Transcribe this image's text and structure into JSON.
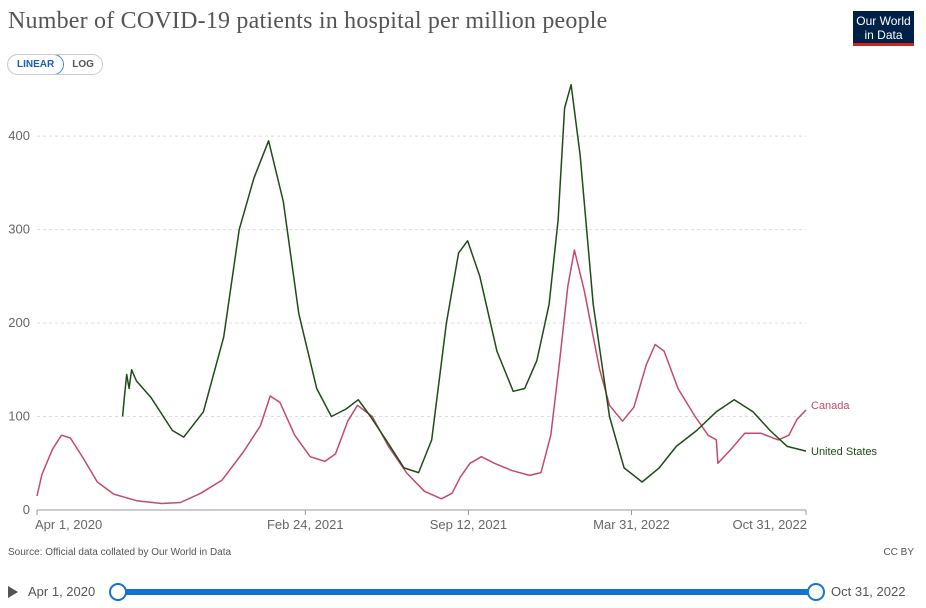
{
  "header": {
    "title": "Number of COVID-19 patients in hospital per million people",
    "logo_line1": "Our World",
    "logo_line2": "in Data"
  },
  "scale_toggle": {
    "linear": "LINEAR",
    "log": "LOG"
  },
  "footer": {
    "source": "Source: Official data collated by Our World in Data",
    "license": "CC BY"
  },
  "timeline": {
    "start": "Apr 1, 2020",
    "end": "Oct 31, 2022"
  },
  "colors": {
    "canada": "#c44a6c",
    "united_states": "#1d4d15",
    "accent": "#1273d1"
  },
  "chart_data": {
    "type": "line",
    "title": "Number of COVID-19 patients in hospital per million people",
    "y_ticks": [
      0,
      100,
      200,
      300,
      400
    ],
    "ylim": [
      0,
      460
    ],
    "x_ticks": [
      "Apr 1, 2020",
      "Feb 24, 2021",
      "Sep 12, 2021",
      "Mar 31, 2022",
      "Oct 31, 2022"
    ],
    "xlim": [
      "2020-04-01",
      "2022-10-31"
    ],
    "grid": "horizontal",
    "legend": "end-of-line labels",
    "series": [
      {
        "name": "Canada",
        "points": [
          [
            "2020-04-01",
            15
          ],
          [
            "2020-04-07",
            38
          ],
          [
            "2020-04-20",
            65
          ],
          [
            "2020-05-01",
            80
          ],
          [
            "2020-05-12",
            77
          ],
          [
            "2020-05-28",
            55
          ],
          [
            "2020-06-14",
            30
          ],
          [
            "2020-07-04",
            17
          ],
          [
            "2020-08-01",
            10
          ],
          [
            "2020-09-01",
            7
          ],
          [
            "2020-09-24",
            8
          ],
          [
            "2020-10-19",
            18
          ],
          [
            "2020-11-14",
            32
          ],
          [
            "2020-12-10",
            62
          ],
          [
            "2020-12-31",
            90
          ],
          [
            "2021-01-12",
            122
          ],
          [
            "2021-01-24",
            115
          ],
          [
            "2021-02-11",
            80
          ],
          [
            "2021-03-02",
            57
          ],
          [
            "2021-03-20",
            52
          ],
          [
            "2021-04-02",
            60
          ],
          [
            "2021-04-17",
            95
          ],
          [
            "2021-04-29",
            112
          ],
          [
            "2021-05-17",
            100
          ],
          [
            "2021-06-06",
            68
          ],
          [
            "2021-06-28",
            40
          ],
          [
            "2021-07-20",
            20
          ],
          [
            "2021-08-10",
            12
          ],
          [
            "2021-08-23",
            18
          ],
          [
            "2021-09-02",
            35
          ],
          [
            "2021-09-14",
            50
          ],
          [
            "2021-09-28",
            57
          ],
          [
            "2021-10-14",
            50
          ],
          [
            "2021-11-05",
            42
          ],
          [
            "2021-11-26",
            37
          ],
          [
            "2021-12-10",
            40
          ],
          [
            "2021-12-22",
            80
          ],
          [
            "2022-01-02",
            160
          ],
          [
            "2022-01-12",
            240
          ],
          [
            "2022-01-20",
            278
          ],
          [
            "2022-02-01",
            235
          ],
          [
            "2022-02-20",
            150
          ],
          [
            "2022-03-04",
            112
          ],
          [
            "2022-03-20",
            95
          ],
          [
            "2022-04-03",
            110
          ],
          [
            "2022-04-18",
            155
          ],
          [
            "2022-04-29",
            177
          ],
          [
            "2022-05-10",
            170
          ],
          [
            "2022-05-27",
            130
          ],
          [
            "2022-06-17",
            100
          ],
          [
            "2022-07-03",
            80
          ],
          [
            "2022-07-13",
            75
          ],
          [
            "2022-07-15",
            50
          ],
          [
            "2022-07-31",
            65
          ],
          [
            "2022-08-17",
            82
          ],
          [
            "2022-09-06",
            82
          ],
          [
            "2022-09-27",
            75
          ],
          [
            "2022-10-10",
            80
          ],
          [
            "2022-10-20",
            97
          ],
          [
            "2022-10-31",
            107
          ]
        ]
      },
      {
        "name": "United States",
        "points": [
          [
            "2020-07-15",
            100
          ],
          [
            "2020-07-17",
            120
          ],
          [
            "2020-07-20",
            145
          ],
          [
            "2020-07-23",
            130
          ],
          [
            "2020-07-26",
            150
          ],
          [
            "2020-08-01",
            138
          ],
          [
            "2020-08-19",
            120
          ],
          [
            "2020-09-14",
            85
          ],
          [
            "2020-09-28",
            78
          ],
          [
            "2020-10-22",
            105
          ],
          [
            "2020-11-16",
            185
          ],
          [
            "2020-12-05",
            300
          ],
          [
            "2020-12-23",
            355
          ],
          [
            "2021-01-10",
            395
          ],
          [
            "2021-01-28",
            330
          ],
          [
            "2021-02-16",
            210
          ],
          [
            "2021-03-10",
            130
          ],
          [
            "2021-03-28",
            100
          ],
          [
            "2021-04-15",
            108
          ],
          [
            "2021-04-30",
            118
          ],
          [
            "2021-05-15",
            100
          ],
          [
            "2021-06-03",
            75
          ],
          [
            "2021-06-25",
            45
          ],
          [
            "2021-07-13",
            40
          ],
          [
            "2021-07-29",
            75
          ],
          [
            "2021-08-16",
            200
          ],
          [
            "2021-08-31",
            275
          ],
          [
            "2021-09-11",
            288
          ],
          [
            "2021-09-26",
            250
          ],
          [
            "2021-10-17",
            170
          ],
          [
            "2021-11-06",
            127
          ],
          [
            "2021-11-20",
            130
          ],
          [
            "2021-12-05",
            160
          ],
          [
            "2021-12-20",
            220
          ],
          [
            "2021-12-31",
            310
          ],
          [
            "2022-01-08",
            430
          ],
          [
            "2022-01-16",
            455
          ],
          [
            "2022-01-27",
            380
          ],
          [
            "2022-02-12",
            220
          ],
          [
            "2022-03-04",
            100
          ],
          [
            "2022-03-22",
            45
          ],
          [
            "2022-04-13",
            30
          ],
          [
            "2022-05-04",
            45
          ],
          [
            "2022-05-25",
            68
          ],
          [
            "2022-06-19",
            85
          ],
          [
            "2022-07-13",
            105
          ],
          [
            "2022-08-04",
            118
          ],
          [
            "2022-08-27",
            105
          ],
          [
            "2022-09-17",
            85
          ],
          [
            "2022-10-08",
            68
          ],
          [
            "2022-10-31",
            63
          ]
        ]
      }
    ]
  }
}
